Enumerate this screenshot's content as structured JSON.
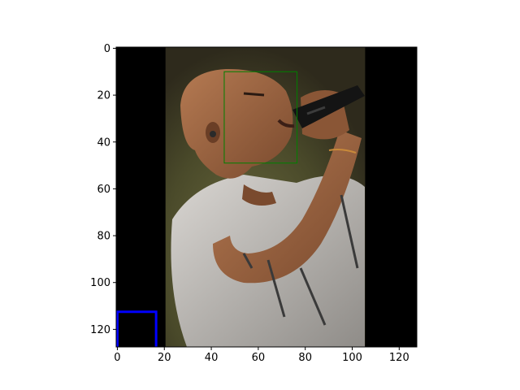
{
  "chart_data": {
    "type": "image",
    "title": "",
    "xlabel": "",
    "ylabel": "",
    "xlim": [
      -0.5,
      127.5
    ],
    "ylim": [
      127.5,
      -0.5
    ],
    "y_axis_inverted": true,
    "x_ticks": [
      0,
      20,
      40,
      60,
      80,
      100,
      120
    ],
    "y_ticks": [
      0,
      20,
      40,
      60,
      80,
      100,
      120
    ],
    "x_tick_labels": [
      "0",
      "20",
      "40",
      "60",
      "80",
      "100",
      "120"
    ],
    "y_tick_labels": [
      "0",
      "20",
      "40",
      "60",
      "80",
      "100",
      "120"
    ],
    "image": {
      "description": "pixelated photo of a bald man singing into a microphone, wearing a light patterned t-shirt",
      "content_x_range": [
        20.5,
        105.5
      ],
      "padding_color": "#000000",
      "watermark_text_visible": false
    },
    "boxes": [
      {
        "name": "face-box",
        "x0": 45.5,
        "y0": 10,
        "x1": 76.5,
        "y1": 49,
        "color": "#008000",
        "linewidth": "thin"
      },
      {
        "name": "corner-box",
        "x0": 0,
        "y0": 112.5,
        "x1": 16.5,
        "y1": 128,
        "color": "#0000ff",
        "linewidth": "thick"
      }
    ]
  },
  "colors": {
    "background": "#ffffff",
    "axis": "#000000",
    "face_box": "#008000",
    "corner_box": "#0000ff"
  }
}
